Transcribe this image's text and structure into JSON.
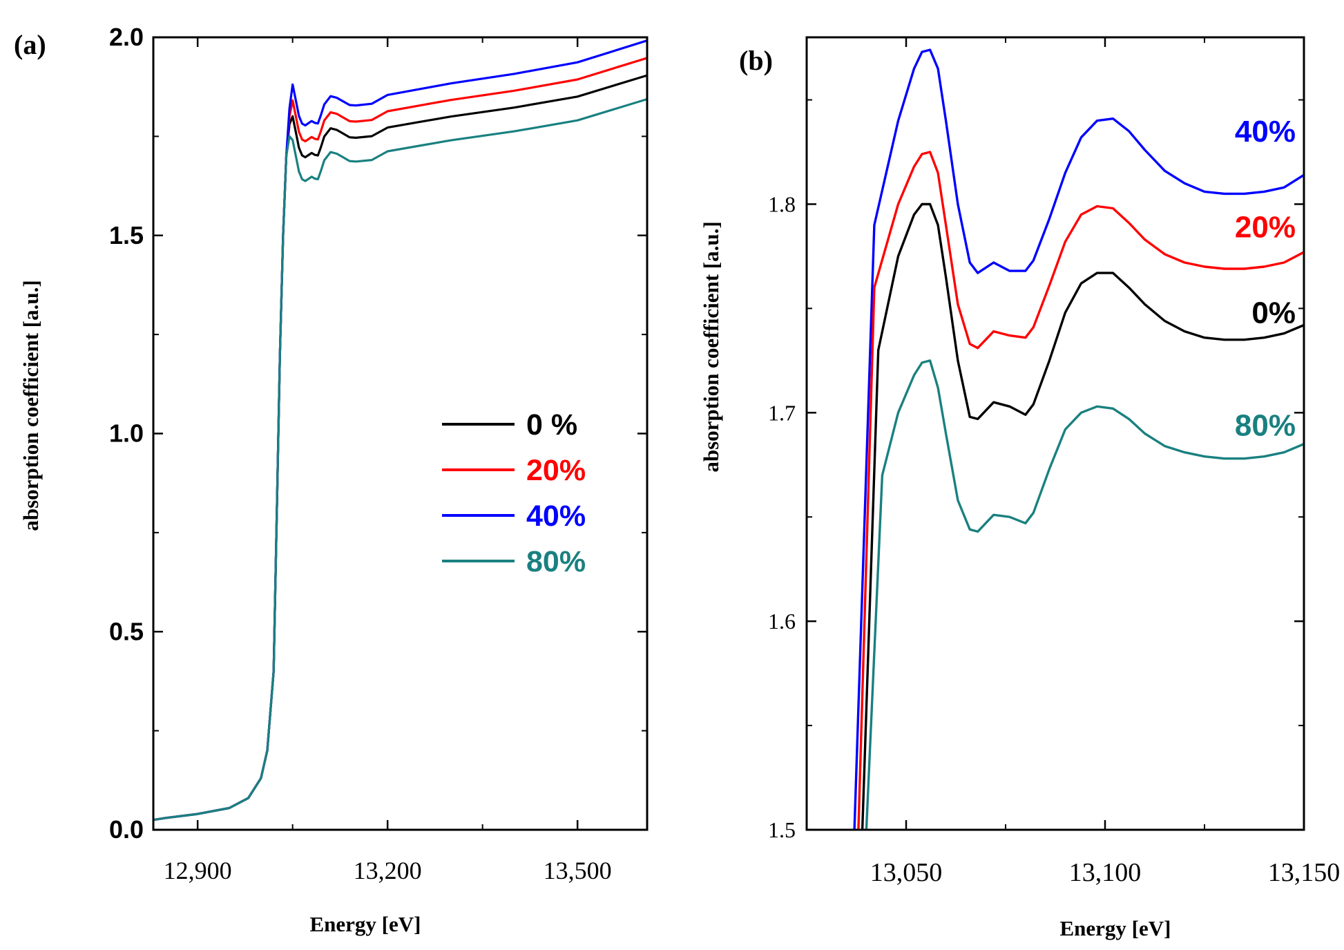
{
  "chart_data": [
    {
      "panel": "(a)",
      "type": "line",
      "xlabel": "Energy [eV]",
      "ylabel": "absorption coefficient [a.u.]",
      "xlim": [
        12830,
        13610
      ],
      "ylim": [
        0.0,
        2.0
      ],
      "xticks": [
        12900,
        13200,
        13500
      ],
      "xtick_labels": [
        "12,900",
        "13,200",
        "13,500"
      ],
      "yticks": [
        0.0,
        0.5,
        1.0,
        1.5,
        2.0
      ],
      "ytick_labels": [
        "0.0",
        "0.5",
        "1.0",
        "1.5",
        "2.0"
      ],
      "legend": {
        "placement": "center-right",
        "entries": [
          "0 %",
          "20%",
          "40%",
          "80%"
        ]
      },
      "series": [
        {
          "name": "0 %",
          "color": "#000000",
          "offset": 0.0,
          "slope": 0.00022
        },
        {
          "name": "20%",
          "color": "#ff0000",
          "offset": 0.04,
          "slope": 0.00024
        },
        {
          "name": "40%",
          "color": "#0000ff",
          "offset": 0.08,
          "slope": 0.00026
        },
        {
          "name": "80%",
          "color": "#1a8080",
          "offset": -0.06,
          "slope": 0.00022
        }
      ],
      "x": [
        12830,
        12850,
        12900,
        12950,
        12980,
        13000,
        13010,
        13020,
        13025,
        13030,
        13035,
        13040,
        13045,
        13050,
        13055,
        13060,
        13065,
        13070,
        13075,
        13080,
        13085,
        13090,
        13095,
        13100,
        13110,
        13120,
        13130,
        13140,
        13150,
        13175,
        13200,
        13250,
        13300,
        13400,
        13500,
        13610
      ],
      "base_values": [
        0.025,
        0.03,
        0.04,
        0.055,
        0.08,
        0.13,
        0.2,
        0.4,
        0.8,
        1.2,
        1.5,
        1.7,
        1.78,
        1.8,
        1.76,
        1.72,
        1.7,
        1.695,
        1.7,
        1.705,
        1.7,
        1.698,
        1.72,
        1.745,
        1.765,
        1.76,
        1.75,
        1.74,
        1.738,
        1.74,
        1.76,
        1.77,
        1.78,
        1.795,
        1.815,
        1.86
      ]
    },
    {
      "panel": "(b)",
      "type": "line",
      "xlabel": "Energy [eV]",
      "ylabel": "absorption coefficient [a.u.]",
      "xlim": [
        13025,
        13150
      ],
      "ylim": [
        1.5,
        1.88
      ],
      "xticks": [
        13050,
        13100,
        13150
      ],
      "xtick_labels": [
        "13,050",
        "13,100",
        "13,150"
      ],
      "yticks": [
        1.5,
        1.6,
        1.7,
        1.8
      ],
      "ytick_labels": [
        "1.5",
        "1.6",
        "1.7",
        "1.8"
      ],
      "annotations": [
        "40%",
        "20%",
        "0%",
        "80%"
      ],
      "series": [
        {
          "name": "40%",
          "color": "#0000ff",
          "x": [
            13037,
            13042,
            13048,
            13052,
            13054,
            13056,
            13058,
            13060,
            13063,
            13066,
            13068,
            13072,
            13076,
            13080,
            13082,
            13086,
            13090,
            13094,
            13098,
            13102,
            13106,
            13110,
            13115,
            13120,
            13125,
            13130,
            13135,
            13140,
            13145,
            13150
          ],
          "y": [
            1.5,
            1.79,
            1.84,
            1.865,
            1.873,
            1.874,
            1.865,
            1.84,
            1.8,
            1.772,
            1.767,
            1.772,
            1.768,
            1.768,
            1.773,
            1.793,
            1.815,
            1.832,
            1.84,
            1.841,
            1.835,
            1.826,
            1.816,
            1.81,
            1.806,
            1.805,
            1.805,
            1.806,
            1.808,
            1.814
          ]
        },
        {
          "name": "20%",
          "color": "#ff0000",
          "x": [
            13038,
            13042,
            13048,
            13052,
            13054,
            13056,
            13058,
            13060,
            13063,
            13066,
            13068,
            13072,
            13076,
            13080,
            13082,
            13086,
            13090,
            13094,
            13098,
            13102,
            13106,
            13110,
            13115,
            13120,
            13125,
            13130,
            13135,
            13140,
            13145,
            13150
          ],
          "y": [
            1.5,
            1.76,
            1.8,
            1.818,
            1.824,
            1.825,
            1.815,
            1.79,
            1.752,
            1.733,
            1.731,
            1.739,
            1.737,
            1.736,
            1.741,
            1.761,
            1.782,
            1.795,
            1.799,
            1.798,
            1.791,
            1.783,
            1.776,
            1.772,
            1.77,
            1.769,
            1.769,
            1.77,
            1.772,
            1.777
          ]
        },
        {
          "name": "0%",
          "color": "#000000",
          "x": [
            13039,
            13043,
            13048,
            13052,
            13054,
            13056,
            13058,
            13060,
            13063,
            13066,
            13068,
            13072,
            13076,
            13080,
            13082,
            13086,
            13090,
            13094,
            13098,
            13102,
            13106,
            13110,
            13115,
            13120,
            13125,
            13130,
            13135,
            13140,
            13145,
            13150
          ],
          "y": [
            1.5,
            1.73,
            1.775,
            1.795,
            1.8,
            1.8,
            1.79,
            1.765,
            1.725,
            1.698,
            1.697,
            1.705,
            1.703,
            1.699,
            1.704,
            1.725,
            1.748,
            1.762,
            1.767,
            1.767,
            1.76,
            1.752,
            1.744,
            1.739,
            1.736,
            1.735,
            1.735,
            1.736,
            1.738,
            1.742
          ]
        },
        {
          "name": "80%",
          "color": "#1a8080",
          "x": [
            13040,
            13044,
            13048,
            13052,
            13054,
            13056,
            13058,
            13060,
            13063,
            13066,
            13068,
            13072,
            13076,
            13080,
            13082,
            13086,
            13090,
            13094,
            13098,
            13102,
            13106,
            13110,
            13115,
            13120,
            13125,
            13130,
            13135,
            13140,
            13145,
            13150
          ],
          "y": [
            1.5,
            1.67,
            1.7,
            1.718,
            1.724,
            1.725,
            1.712,
            1.69,
            1.658,
            1.644,
            1.643,
            1.651,
            1.65,
            1.647,
            1.652,
            1.673,
            1.692,
            1.7,
            1.703,
            1.702,
            1.697,
            1.69,
            1.684,
            1.681,
            1.679,
            1.678,
            1.678,
            1.679,
            1.681,
            1.685
          ]
        }
      ]
    }
  ]
}
